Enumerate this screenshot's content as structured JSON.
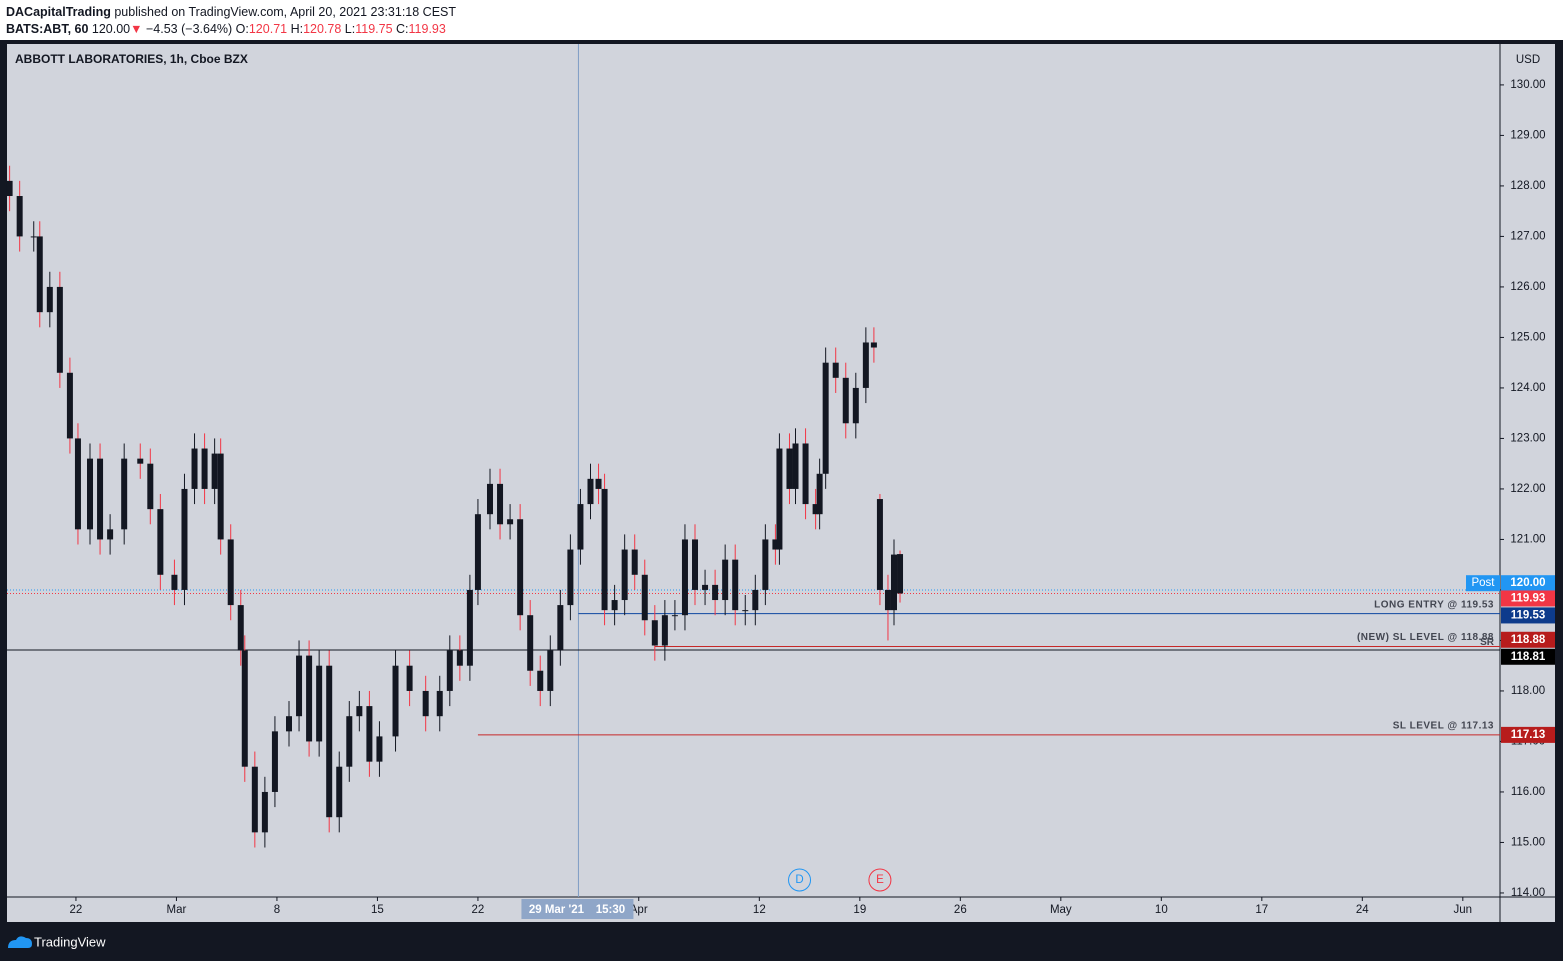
{
  "header": {
    "author": "DACapitalTrading",
    "published": "published on TradingView.com, April 20, 2021 23:31:18 CEST",
    "symbol": "BATS:ABT, 60",
    "last": "120.00",
    "arrow": "▼",
    "change": "−4.53 (−3.64%)",
    "o_label": "O:",
    "o": "120.71",
    "h_label": "H:",
    "h": "120.78",
    "l_label": "L:",
    "l": "119.75",
    "c_label": "C:",
    "c": "119.93"
  },
  "footer": {
    "brand": "TradingView"
  },
  "chart_data": {
    "type": "candlestick",
    "title": "ABBOTT LABORATORIES, 1h, Cboe BZX",
    "currency": "USD",
    "body_color": "#131722",
    "wick_up_color": "#131722",
    "wick_down_color": "#f23645",
    "x": [
      -3.3,
      -2.8,
      -2.1,
      -1.8,
      -1.3,
      -0.8,
      -0.3,
      0.1,
      0.7,
      1.2,
      1.7,
      2.4,
      3.2,
      3.7,
      4.2,
      4.9,
      5.4,
      5.9,
      6.4,
      6.9,
      7.2,
      7.7,
      8.2,
      8.4,
      8.9,
      9.4,
      9.9,
      10.6,
      11.1,
      11.6,
      12.1,
      12.6,
      13.1,
      13.6,
      14.1,
      14.6,
      15.1,
      15.9,
      16.6,
      17.4,
      18.1,
      18.6,
      19.1,
      19.6,
      20,
      20.6,
      21.1,
      21.6,
      22.1,
      22.6,
      23.1,
      23.6,
      24.1,
      24.6,
      25.1,
      25.6,
      26,
      26.3,
      26.8,
      27.3,
      27.8,
      28.3,
      28.8,
      29.3,
      29.8,
      30.3,
      30.8,
      31.3,
      31.8,
      32.3,
      32.8,
      33.3,
      33.8,
      34.3,
      34.8,
      35,
      35.5,
      35.8,
      36.3,
      36.8,
      37,
      37.3,
      37.8,
      38.3,
      38.8,
      39.3,
      39.7,
      40,
      40.4,
      40.7,
      41
    ],
    "open": [
      128.1,
      127.8,
      127,
      127,
      125.5,
      126,
      124.3,
      123,
      121.2,
      122.6,
      121,
      121.2,
      122.6,
      122.5,
      121.6,
      120.3,
      120,
      122,
      122.8,
      122,
      122.7,
      121,
      119.7,
      118.8,
      116.5,
      115.2,
      116,
      117.2,
      117.5,
      118.7,
      117,
      118.5,
      115.5,
      116.5,
      117.5,
      117.7,
      116.6,
      117.1,
      118.5,
      118,
      117.5,
      118,
      118.8,
      118.5,
      120,
      121.5,
      122.1,
      121.3,
      121.4,
      119.5,
      118.4,
      118,
      118.8,
      119.7,
      120.8,
      121.7,
      122.2,
      122,
      119.6,
      119.8,
      120.8,
      120.3,
      119.4,
      118.9,
      119.5,
      119.5,
      121,
      120,
      120.1,
      119.8,
      120.6,
      119.6,
      119.6,
      120,
      121,
      120.8,
      122.8,
      122,
      122.9,
      121.7,
      121.5,
      122.3,
      124.5,
      124.2,
      123.3,
      124,
      124.9,
      121.8,
      120,
      119.6,
      120.71
    ],
    "high": [
      128.4,
      128.1,
      127.3,
      127.3,
      126.3,
      126.3,
      124.6,
      123.3,
      122.9,
      122.9,
      121.5,
      122.9,
      122.9,
      122.8,
      121.9,
      120.6,
      122.3,
      123.1,
      123.1,
      123,
      123,
      121.3,
      120,
      119.1,
      116.8,
      116.3,
      117.5,
      117.8,
      119,
      119,
      118.8,
      118.8,
      116.8,
      117.8,
      118,
      118,
      117.4,
      118.8,
      118.8,
      118.3,
      118.3,
      119.1,
      119.1,
      120.3,
      121.8,
      122.4,
      122.4,
      121.7,
      121.7,
      119.8,
      118.7,
      119.1,
      120,
      121.1,
      122,
      122.5,
      122.5,
      122.3,
      120.1,
      121.1,
      121.1,
      120.6,
      119.7,
      119.8,
      119.8,
      121.3,
      121.3,
      120.4,
      120.4,
      120.9,
      120.9,
      119.9,
      120.3,
      121.3,
      121.3,
      123.1,
      123.1,
      123.2,
      123.2,
      122,
      122.6,
      124.8,
      124.8,
      124.5,
      124.3,
      125.2,
      125.2,
      121.9,
      120.3,
      121,
      120.78
    ],
    "low": [
      127.5,
      126.7,
      126.7,
      125.2,
      125.2,
      124,
      122.7,
      120.9,
      120.9,
      120.7,
      120.7,
      120.9,
      122.2,
      121.3,
      120,
      119.7,
      119.7,
      121.7,
      121.7,
      121.7,
      120.7,
      119.4,
      118.5,
      116.2,
      114.9,
      114.9,
      115.7,
      116.9,
      117.2,
      116.7,
      116.7,
      115.2,
      115.2,
      116.2,
      117.2,
      116.3,
      116.3,
      116.8,
      117.7,
      117.2,
      117.2,
      117.7,
      118.2,
      118.2,
      119.7,
      121.2,
      121,
      121,
      119.2,
      118.1,
      117.7,
      117.7,
      118.5,
      119.4,
      120.5,
      121.4,
      121.7,
      119.3,
      119.3,
      119.5,
      120,
      119.1,
      118.6,
      118.6,
      119.2,
      119.2,
      119.7,
      119.7,
      119.5,
      119.5,
      119.3,
      119.3,
      119.3,
      119.7,
      120.5,
      120.5,
      121.7,
      121.7,
      121.4,
      121.2,
      121.2,
      122,
      123.9,
      123,
      123,
      123.7,
      124.5,
      119.7,
      119,
      119.3,
      119.75
    ],
    "close": [
      127.8,
      127,
      127,
      125.5,
      126,
      124.3,
      123,
      121.2,
      122.6,
      121,
      121.2,
      122.6,
      122.5,
      121.6,
      120.3,
      120,
      122,
      122.8,
      122,
      122.7,
      121,
      119.7,
      118.8,
      116.5,
      115.2,
      116,
      117.2,
      117.5,
      118.7,
      117,
      118.5,
      115.5,
      116.5,
      117.5,
      117.7,
      116.6,
      117.1,
      118.5,
      118,
      117.5,
      118,
      118.8,
      118.5,
      120,
      121.5,
      122.1,
      121.3,
      121.4,
      119.5,
      118.4,
      118,
      118.8,
      119.7,
      120.8,
      121.7,
      122.2,
      122,
      119.6,
      119.8,
      120.8,
      120.3,
      119.4,
      118.9,
      119.5,
      119.5,
      121,
      120,
      120.1,
      119.8,
      120.6,
      119.6,
      119.6,
      120,
      121,
      120.8,
      122.8,
      122,
      122.9,
      121.7,
      121.5,
      122.3,
      124.5,
      124.2,
      123.3,
      124,
      124.9,
      124.8,
      120,
      119.6,
      120.7,
      119.93
    ],
    "xlim": [
      -3.43,
      70.85
    ],
    "ylim": [
      113.92,
      130.81
    ],
    "xticks": [
      {
        "value": 0,
        "label": "22"
      },
      {
        "value": 5,
        "label": "Mar"
      },
      {
        "value": 10,
        "label": "8"
      },
      {
        "value": 15,
        "label": "15"
      },
      {
        "value": 20,
        "label": "22"
      },
      {
        "value": 28,
        "label": "Apr"
      },
      {
        "value": 34,
        "label": "12"
      },
      {
        "value": 39,
        "label": "19"
      },
      {
        "value": 44,
        "label": "26"
      },
      {
        "value": 49,
        "label": "May"
      },
      {
        "value": 54,
        "label": "10"
      },
      {
        "value": 59,
        "label": "17"
      },
      {
        "value": 64,
        "label": "24"
      },
      {
        "value": 69,
        "label": "Jun"
      }
    ],
    "yticks": [
      {
        "value": 114,
        "label": "114.00"
      },
      {
        "value": 115,
        "label": "115.00"
      },
      {
        "value": 116,
        "label": "116.00"
      },
      {
        "value": 117,
        "label": "117.00"
      },
      {
        "value": 118,
        "label": "118.00"
      },
      {
        "value": 119,
        "label": "119.00"
      },
      {
        "value": 120,
        "label": "120.00"
      },
      {
        "value": 121,
        "label": "121.00"
      },
      {
        "value": 122,
        "label": "122.00"
      },
      {
        "value": 123,
        "label": "123.00"
      },
      {
        "value": 124,
        "label": "124.00"
      },
      {
        "value": 125,
        "label": "125.00"
      },
      {
        "value": 126,
        "label": "126.00"
      },
      {
        "value": 127,
        "label": "127.00"
      },
      {
        "value": 128,
        "label": "128.00"
      },
      {
        "value": 129,
        "label": "129.00"
      },
      {
        "value": 130,
        "label": "130.00"
      }
    ],
    "levels": [
      {
        "text": "LONG ENTRY @ 119.53",
        "value": 119.53,
        "start_x": 25.0,
        "color": "#0d47a1"
      },
      {
        "text": "(NEW) SL LEVEL @ 118.88",
        "value": 118.88,
        "start_x": 28.8,
        "color": "#c62828"
      },
      {
        "text": "SL LEVEL @ 117.13",
        "value": 117.13,
        "start_x": 20.0,
        "color": "#c62828"
      }
    ],
    "level_tag": "SR",
    "dotted": [
      {
        "value": 120,
        "color": "#2196f3"
      },
      {
        "value": 119.93,
        "color": "#f23645"
      }
    ],
    "price_tags": [
      {
        "value": 120,
        "label": "120.00",
        "color": "#2196f3",
        "prefix": "Post"
      },
      {
        "value": 119.93,
        "label": "119.93",
        "color": "#f23645"
      },
      {
        "value": 119.53,
        "label": "119.53",
        "color": "#0d3b8c"
      },
      {
        "value": 118.88,
        "label": "118.88",
        "color": "#b71c1c"
      },
      {
        "value": 118.81,
        "label": "118.81",
        "color": "#000000"
      },
      {
        "value": 117.13,
        "label": "117.13",
        "color": "#b71c1c"
      }
    ],
    "crosshair": {
      "x": 25.0,
      "y": 118.81,
      "date": "29 Mar '21",
      "time": "15:30"
    },
    "events": [
      {
        "x": 36.0,
        "label": "D",
        "color": "#2196f3"
      },
      {
        "x": 40.0,
        "label": "E",
        "color": "#f23645"
      }
    ]
  }
}
